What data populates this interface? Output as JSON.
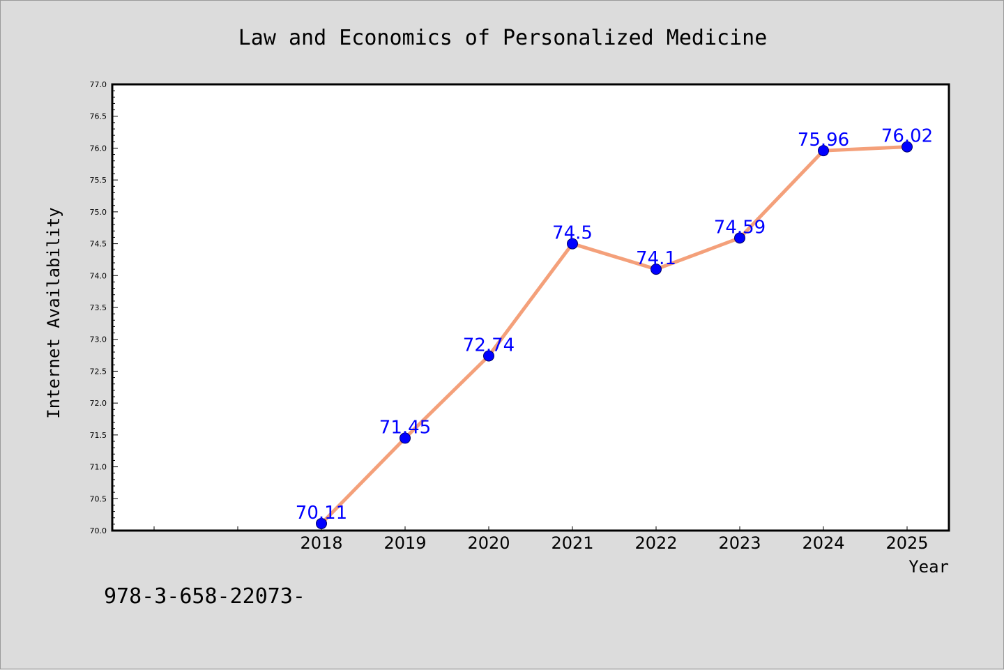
{
  "chart_data": {
    "type": "line",
    "title": "Law and Economics of Personalized Medicine",
    "xlabel": "Year",
    "ylabel": "Internet Availability",
    "categories": [
      "2018",
      "2019",
      "2020",
      "2021",
      "2022",
      "2023",
      "2024",
      "2025"
    ],
    "series": [
      {
        "values": [
          70.11,
          71.45,
          72.74,
          74.5,
          74.1,
          74.59,
          75.96,
          76.02
        ],
        "data_labels": [
          "70.11",
          "71.45",
          "72.74",
          "74.5",
          "74.1",
          "74.59",
          "75.96",
          "76.02"
        ]
      }
    ],
    "ylim": [
      70.0,
      77.0
    ],
    "yticks": [
      "70.0",
      "70.5",
      "71.0",
      "71.5",
      "72.0",
      "72.5",
      "73.0",
      "73.5",
      "74.0",
      "74.5",
      "75.0",
      "75.5",
      "76.0",
      "76.5",
      "77.0"
    ],
    "x_leading_empty_slots": 2,
    "grid": false,
    "legend": "none",
    "colors": {
      "line": "#f4a07a",
      "marker": "#0000ff",
      "marker_edge": "#000066",
      "data_label": "#0000ff",
      "background": "#dcdcdc",
      "plot_background": "#ffffff"
    }
  },
  "footer_text": "978-3-658-22073-"
}
